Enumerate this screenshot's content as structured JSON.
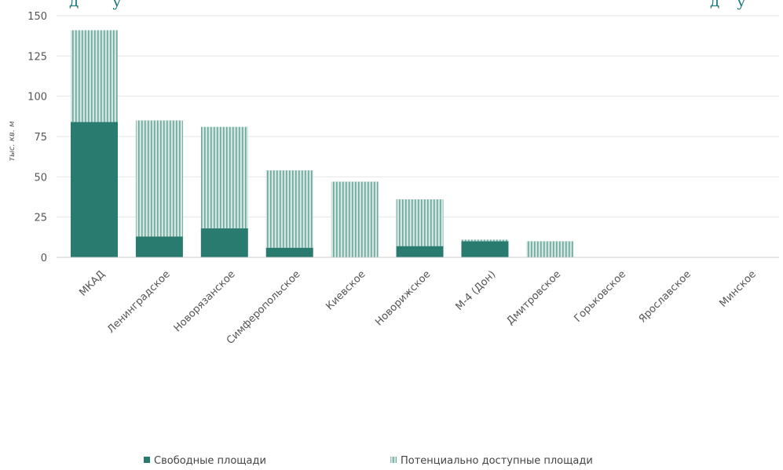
{
  "title_fragment": {
    "left": "д",
    "mid": "у",
    "right_a": "д",
    "right_b": "у"
  },
  "chart_data": {
    "type": "bar",
    "stacked": true,
    "categories": [
      "МКАД",
      "Ленинградское",
      "Новорязанское",
      "Симферопольское",
      "Киевское",
      "Новорижское",
      "М-4 (Дон)",
      "Дмитровское",
      "Горьковское",
      "Ярославское",
      "Минское"
    ],
    "series": [
      {
        "name": "Свободные площади",
        "values": [
          84,
          13,
          18,
          6,
          0,
          7,
          10,
          0,
          0,
          0,
          0
        ]
      },
      {
        "name": "Потенциально доступные площади",
        "values": [
          57,
          72,
          63,
          48,
          47,
          29,
          1,
          10,
          0,
          0,
          0
        ]
      }
    ],
    "ylabel": "тыс. кв. м",
    "yticks": [
      "0",
      "25",
      "50",
      "75",
      "100",
      "125",
      "150"
    ],
    "ylim": [
      0,
      150
    ],
    "grid": true,
    "legend_position": "bottom",
    "colors": {
      "solid": "#2a7b6f",
      "hatch_bg": "#cfe6e1",
      "hatch_line": "#6fa89f",
      "grid": "#e6e6e6",
      "axis": "#cccccc"
    }
  }
}
